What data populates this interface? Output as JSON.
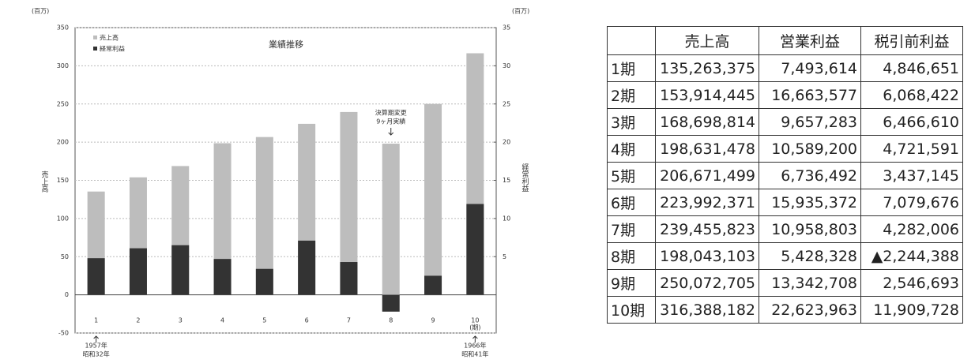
{
  "chart_data": {
    "type": "bar",
    "title": "業績推移",
    "y_label": "売上高",
    "y2_label": "経常利益",
    "y_unit": "(百万)",
    "y2_unit": "(百万)",
    "categories": [
      "1",
      "2",
      "3",
      "4",
      "5",
      "6",
      "7",
      "8",
      "9",
      "10"
    ],
    "x_unit": "(期)",
    "series": [
      {
        "name": "売上高",
        "color": "#bdbdbd",
        "values": [
          135.3,
          153.9,
          168.7,
          198.6,
          206.7,
          224.0,
          239.5,
          198.0,
          250.1,
          316.4
        ]
      },
      {
        "name": "経常利益",
        "color": "#333333",
        "axis": "y2",
        "values": [
          4.8,
          6.1,
          6.5,
          4.7,
          3.4,
          7.1,
          4.3,
          -2.2,
          2.5,
          11.9
        ]
      }
    ],
    "ylim": [
      -50,
      350
    ],
    "yticks": [
      -50,
      0,
      50,
      100,
      150,
      200,
      250,
      300,
      350
    ],
    "y2lim": [
      -5,
      35
    ],
    "y2ticks": [
      5,
      10,
      15,
      20,
      25,
      30,
      35
    ],
    "grid": true,
    "annotations": [
      {
        "lines": [
          "決算期変更",
          "9ヶ月実績"
        ]
      },
      {
        "lines": [
          "1957年",
          "昭和32年"
        ]
      },
      {
        "lines": [
          "1966年",
          "昭和41年"
        ]
      }
    ]
  },
  "table": {
    "header": [
      "売上高",
      "営業利益",
      "税引前利益"
    ],
    "rows": [
      [
        "1期",
        "135,263,375",
        "7,493,614",
        "4,846,651"
      ],
      [
        "2期",
        "153,914,445",
        "16,663,577",
        "6,068,422"
      ],
      [
        "3期",
        "168,698,814",
        "9,657,283",
        "6,466,610"
      ],
      [
        "4期",
        "198,631,478",
        "10,589,200",
        "4,721,591"
      ],
      [
        "5期",
        "206,671,499",
        "6,736,492",
        "3,437,145"
      ],
      [
        "6期",
        "223,992,371",
        "15,935,372",
        "7,079,676"
      ],
      [
        "7期",
        "239,455,823",
        "10,958,803",
        "4,282,006"
      ],
      [
        "8期",
        "198,043,103",
        "5,428,328",
        "▲2,244,388"
      ],
      [
        "9期",
        "250,072,705",
        "13,342,708",
        "2,546,693"
      ],
      [
        "10期",
        "316,388,182",
        "22,623,963",
        "11,909,728"
      ]
    ]
  }
}
